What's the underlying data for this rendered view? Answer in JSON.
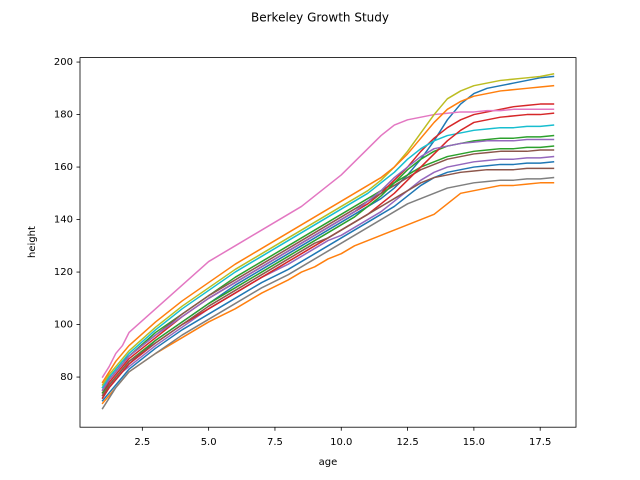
{
  "chart_data": {
    "type": "line",
    "title": "Berkeley Growth Study",
    "xlabel": "age",
    "ylabel": "height",
    "x": [
      1,
      1.25,
      1.5,
      1.75,
      2,
      3,
      4,
      5,
      6,
      7,
      8,
      8.5,
      9,
      9.5,
      10,
      10.5,
      11,
      11.5,
      12,
      12.5,
      13,
      13.5,
      14,
      14.5,
      15,
      15.5,
      16,
      16.5,
      17,
      17.5,
      18
    ],
    "xlim": [
      0.15,
      18.85
    ],
    "xticks": [
      2.5,
      {
        "value": 5,
        "label": "5.0"
      },
      7.5,
      {
        "value": 10,
        "label": "10.0"
      },
      12.5,
      {
        "value": 15,
        "label": "15.0"
      },
      17.5
    ],
    "ylim": [
      60.9,
      201.7
    ],
    "yticks": [
      80,
      100,
      120,
      140,
      160,
      180,
      200
    ],
    "series": [
      {
        "color": "#1f77b4",
        "values": [
          72,
          76,
          79,
          82,
          85,
          94,
          101,
          108,
          115,
          121,
          127,
          130,
          133,
          136,
          139,
          142,
          145,
          148,
          152,
          157,
          163,
          170,
          178,
          184,
          188,
          190,
          191,
          192,
          193,
          194,
          194.5
        ]
      },
      {
        "color": "#ff7f0e",
        "values": [
          70,
          73,
          76,
          79,
          82,
          89,
          95,
          101,
          106,
          112,
          117,
          120,
          122,
          125,
          127,
          130,
          132,
          134,
          136,
          138,
          140,
          142,
          146,
          150,
          151,
          152,
          153,
          153,
          153.5,
          154,
          154
        ]
      },
      {
        "color": "#2ca02c",
        "values": [
          76,
          80,
          83,
          86,
          88,
          97,
          104,
          111,
          118,
          124,
          130,
          133,
          136,
          139,
          142,
          145,
          148,
          151,
          154,
          157,
          160,
          162,
          164,
          165,
          166,
          166.5,
          167,
          167,
          167.5,
          167.5,
          168
        ]
      },
      {
        "color": "#d62728",
        "values": [
          74,
          78,
          81,
          84,
          87,
          95,
          103,
          110,
          116,
          122,
          128,
          131,
          134,
          137,
          140,
          143,
          146,
          150,
          155,
          160,
          166,
          171,
          175,
          178,
          180,
          181,
          182,
          183,
          183.5,
          184,
          184
        ]
      },
      {
        "color": "#9467bd",
        "values": [
          73,
          76,
          79,
          82,
          84,
          92,
          99,
          106,
          112,
          118,
          123,
          126,
          129,
          132,
          134,
          137,
          140,
          143,
          147,
          151,
          155,
          158,
          160,
          161,
          162,
          162.5,
          163,
          163,
          163.5,
          163.5,
          164
        ]
      },
      {
        "color": "#8c564b",
        "values": [
          75,
          79,
          82,
          85,
          88,
          96,
          104,
          111,
          117,
          123,
          129,
          132,
          135,
          138,
          141,
          144,
          147,
          150,
          153,
          156,
          159,
          161,
          163,
          164,
          165,
          165.5,
          166,
          166,
          166,
          166.5,
          166.5
        ]
      },
      {
        "color": "#e377c2",
        "values": [
          80,
          84,
          89,
          92,
          97,
          106,
          115,
          124,
          130,
          136,
          142,
          145,
          149,
          153,
          157,
          162,
          167,
          172,
          176,
          178,
          179,
          180,
          180.5,
          181,
          181,
          181.5,
          181.5,
          182,
          182,
          182,
          182
        ]
      },
      {
        "color": "#7f7f7f",
        "values": [
          68,
          72,
          76,
          79,
          82,
          89,
          96,
          102,
          108,
          114,
          119,
          122,
          125,
          128,
          131,
          134,
          137,
          140,
          143,
          146,
          148,
          150,
          152,
          153,
          154,
          154.5,
          155,
          155,
          155.5,
          155.5,
          156
        ]
      },
      {
        "color": "#bcbd22",
        "values": [
          77,
          81,
          84,
          87,
          90,
          99,
          107,
          114,
          121,
          127,
          133,
          136,
          139,
          142,
          145,
          148,
          151,
          155,
          160,
          166,
          173,
          180,
          186,
          189,
          191,
          192,
          193,
          193.5,
          194,
          194.5,
          195.5
        ]
      },
      {
        "color": "#17becf",
        "values": [
          76,
          80,
          83,
          86,
          89,
          98,
          106,
          113,
          120,
          126,
          132,
          135,
          138,
          141,
          144,
          147,
          150,
          154,
          158,
          163,
          167,
          170,
          172,
          173,
          174,
          174.5,
          175,
          175,
          175.5,
          175.5,
          176
        ]
      },
      {
        "color": "#1f77b4",
        "values": [
          71,
          74,
          77,
          80,
          83,
          91,
          98,
          104,
          110,
          116,
          121,
          124,
          127,
          130,
          133,
          136,
          139,
          142,
          145,
          149,
          153,
          156,
          158,
          159,
          160,
          160.5,
          161,
          161,
          161.5,
          161.5,
          162
        ]
      },
      {
        "color": "#ff7f0e",
        "values": [
          78,
          82,
          86,
          89,
          92,
          101,
          109,
          116,
          123,
          129,
          135,
          138,
          141,
          144,
          147,
          150,
          153,
          156,
          160,
          165,
          171,
          177,
          182,
          185,
          187,
          188,
          189,
          189.5,
          190,
          190.5,
          191
        ]
      },
      {
        "color": "#2ca02c",
        "values": [
          74,
          77,
          80,
          83,
          86,
          94,
          101,
          108,
          114,
          120,
          126,
          129,
          132,
          135,
          138,
          141,
          145,
          149,
          154,
          159,
          163,
          166,
          168,
          169,
          170,
          170.5,
          171,
          171,
          171.5,
          171.5,
          172
        ]
      },
      {
        "color": "#d62728",
        "values": [
          72,
          76,
          79,
          82,
          85,
          93,
          100,
          106,
          112,
          118,
          124,
          127,
          130,
          133,
          136,
          139,
          142,
          146,
          150,
          155,
          160,
          165,
          170,
          174,
          177,
          178,
          179,
          179.5,
          180,
          180,
          180.5
        ]
      },
      {
        "color": "#9467bd",
        "values": [
          75,
          79,
          82,
          85,
          88,
          96,
          103,
          110,
          116,
          122,
          128,
          131,
          134,
          137,
          140,
          143,
          147,
          151,
          156,
          160,
          164,
          167,
          168,
          169,
          169.5,
          170,
          170,
          170,
          170.5,
          170.5,
          170.5
        ]
      },
      {
        "color": "#8c564b",
        "values": [
          73,
          77,
          80,
          83,
          86,
          93,
          100,
          107,
          113,
          119,
          125,
          128,
          131,
          133,
          136,
          139,
          142,
          145,
          148,
          151,
          154,
          156,
          157,
          158,
          158.5,
          159,
          159,
          159,
          159.5,
          159.5,
          159.5
        ]
      }
    ]
  }
}
